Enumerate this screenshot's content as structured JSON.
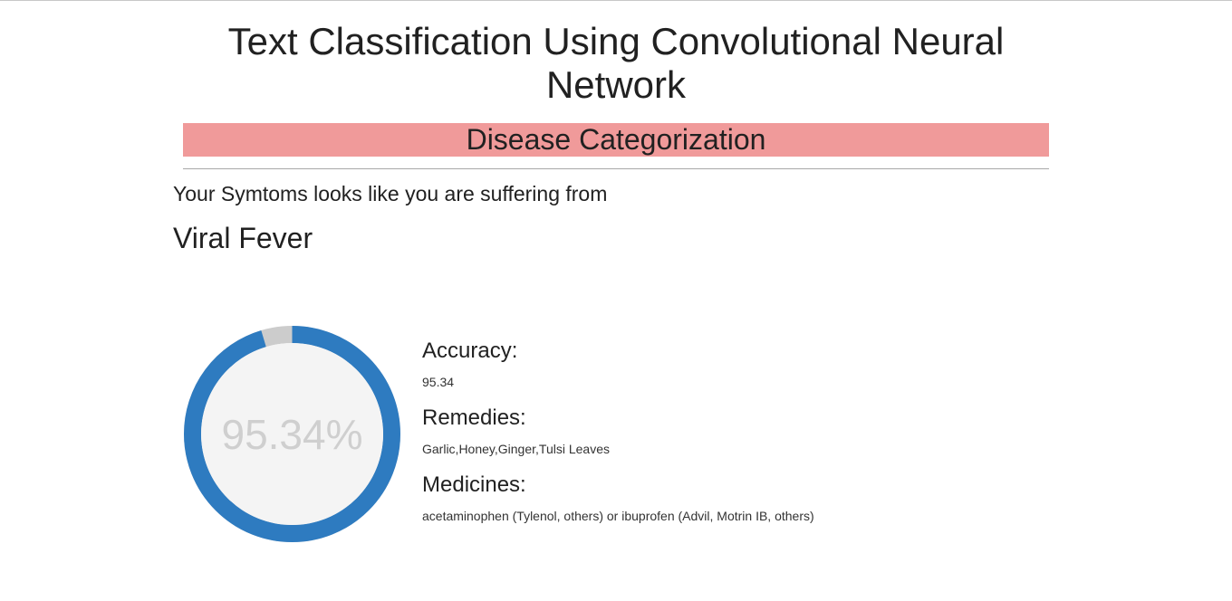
{
  "header": {
    "title": "Text Classification Using Convolutional Neural Network",
    "banner": "Disease Categorization"
  },
  "result": {
    "intro": "Your Symtoms looks like you are suffering from",
    "diagnosis": "Viral Fever"
  },
  "gauge": {
    "percent": 95.34,
    "label": "95.34%",
    "fill_color": "#2e7bc0",
    "track_color": "#cccccc",
    "center_color": "#f4f4f4"
  },
  "details": {
    "accuracy_heading": "Accuracy:",
    "accuracy_value": "95.34",
    "remedies_heading": "Remedies:",
    "remedies_value": "Garlic,Honey,Ginger,Tulsi Leaves",
    "medicines_heading": "Medicines:",
    "medicines_value": "acetaminophen (Tylenol, others) or ibuprofen (Advil, Motrin IB, others)"
  }
}
